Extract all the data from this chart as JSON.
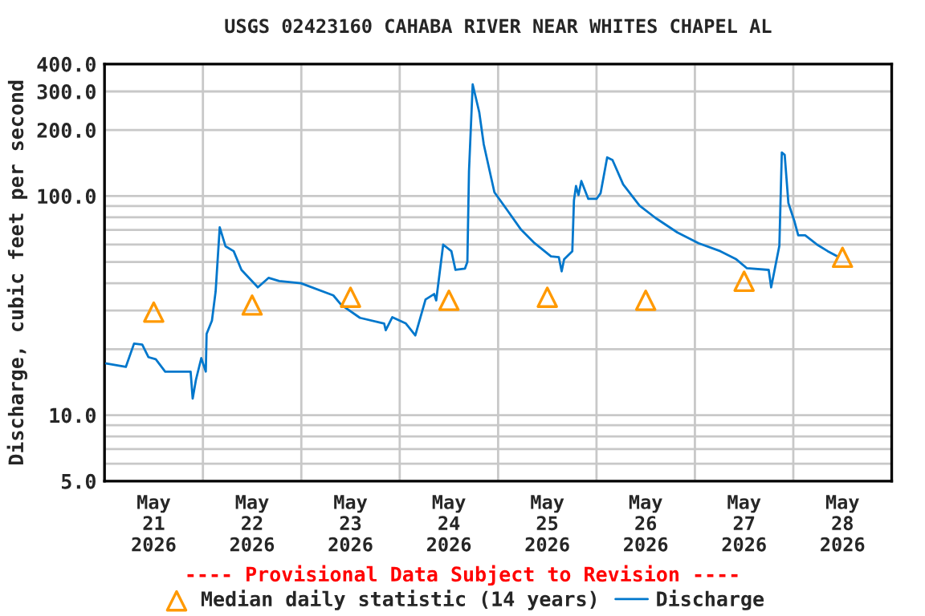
{
  "chart_data": {
    "type": "line",
    "title": "USGS 02423160 CAHABA RIVER NEAR WHITES CHAPEL AL",
    "ylabel": "Discharge, cubic feet per second",
    "annotations": [
      "---- Provisional Data Subject to Revision ----"
    ],
    "log": "y",
    "grid": true,
    "legend": "bottom",
    "xlim": [
      "2026-05-21T00:00",
      "2026-05-29T00:00"
    ],
    "xticks": [
      {
        "value": "2026-05-21T00:00",
        "label": null
      },
      {
        "value": "2026-05-21T12:00",
        "label": "May\n21\n2026"
      },
      {
        "value": "2026-05-22T00:00",
        "label": null
      },
      {
        "value": "2026-05-22T12:00",
        "label": "May\n22\n2026"
      },
      {
        "value": "2026-05-23T00:00",
        "label": null
      },
      {
        "value": "2026-05-23T12:00",
        "label": "May\n23\n2026"
      },
      {
        "value": "2026-05-24T00:00",
        "label": null
      },
      {
        "value": "2026-05-24T12:00",
        "label": "May\n24\n2026"
      },
      {
        "value": "2026-05-25T00:00",
        "label": null
      },
      {
        "value": "2026-05-25T12:00",
        "label": "May\n25\n2026"
      },
      {
        "value": "2026-05-26T00:00",
        "label": null
      },
      {
        "value": "2026-05-26T12:00",
        "label": "May\n26\n2026"
      },
      {
        "value": "2026-05-27T00:00",
        "label": null
      },
      {
        "value": "2026-05-27T12:00",
        "label": "May\n27\n2026"
      },
      {
        "value": "2026-05-28T00:00",
        "label": null
      },
      {
        "value": "2026-05-28T12:00",
        "label": "May\n28\n2026"
      },
      {
        "value": "2026-05-29T00:00",
        "label": null
      }
    ],
    "ylim": [
      5,
      400
    ],
    "yticks": [
      {
        "value": 5,
        "label": "5.0"
      },
      {
        "value": 6,
        "label": null
      },
      {
        "value": 7,
        "label": null
      },
      {
        "value": 8,
        "label": null
      },
      {
        "value": 9,
        "label": null
      },
      {
        "value": 10,
        "label": "10.0"
      },
      {
        "value": 20,
        "label": null
      },
      {
        "value": 30,
        "label": null
      },
      {
        "value": 40,
        "label": null
      },
      {
        "value": 50,
        "label": null
      },
      {
        "value": 60,
        "label": null
      },
      {
        "value": 70,
        "label": null
      },
      {
        "value": 80,
        "label": null
      },
      {
        "value": 90,
        "label": null
      },
      {
        "value": 100,
        "label": "100.0"
      },
      {
        "value": 200,
        "label": "200.0"
      },
      {
        "value": 300,
        "label": "300.0"
      },
      {
        "value": 400,
        "label": "400.0"
      }
    ],
    "series": [
      {
        "name": "Median daily statistic (14 years)",
        "type": "scatter",
        "marker": "triangle",
        "color": "#ff9900",
        "x": [
          "2026-05-21T12:00",
          "2026-05-22T12:00",
          "2026-05-23T12:00",
          "2026-05-24T12:00",
          "2026-05-25T12:00",
          "2026-05-26T12:00",
          "2026-05-27T12:00",
          "2026-05-28T12:00"
        ],
        "values": [
          29.5,
          31.8,
          34.5,
          33.4,
          34.5,
          33.4,
          40.8,
          52.5
        ]
      },
      {
        "name": "Discharge",
        "color": "#0077cc",
        "x": [
          "2026-05-21T00:24",
          "2026-05-21T05:12",
          "2026-05-21T07:12",
          "2026-05-21T09:12",
          "2026-05-21T10:42",
          "2026-05-21T12:30",
          "2026-05-21T14:48",
          "2026-05-21T21:00",
          "2026-05-21T21:30",
          "2026-05-21T22:18",
          "2026-05-21T23:36",
          "2026-05-22T00:42",
          "2026-05-22T00:54",
          "2026-05-22T02:12",
          "2026-05-22T03:06",
          "2026-05-22T04:06",
          "2026-05-22T05:30",
          "2026-05-22T07:30",
          "2026-05-22T09:24",
          "2026-05-22T13:24",
          "2026-05-22T16:00",
          "2026-05-22T18:36",
          "2026-05-22T23:54",
          "2026-05-23T07:48",
          "2026-05-23T09:42",
          "2026-05-23T14:18",
          "2026-05-23T20:12",
          "2026-05-23T20:36",
          "2026-05-23T22:12",
          "2026-05-24T01:30",
          "2026-05-24T03:48",
          "2026-05-24T06:18",
          "2026-05-24T08:24",
          "2026-05-24T08:54",
          "2026-05-24T10:36",
          "2026-05-24T12:36",
          "2026-05-24T13:36",
          "2026-05-24T15:54",
          "2026-05-24T16:30",
          "2026-05-24T16:54",
          "2026-05-24T17:48",
          "2026-05-24T19:24",
          "2026-05-24T20:30",
          "2026-05-24T22:24",
          "2026-05-24T23:06",
          "2026-05-25T02:24",
          "2026-05-25T05:36",
          "2026-05-25T08:54",
          "2026-05-25T12:54",
          "2026-05-25T14:48",
          "2026-05-25T15:30",
          "2026-05-25T16:06",
          "2026-05-25T18:06",
          "2026-05-25T18:30",
          "2026-05-25T19:00",
          "2026-05-25T19:36",
          "2026-05-25T20:18",
          "2026-05-25T22:00",
          "2026-05-26T00:00",
          "2026-05-26T01:00",
          "2026-05-26T02:36",
          "2026-05-26T03:54",
          "2026-05-26T06:30",
          "2026-05-26T10:30",
          "2026-05-26T14:24",
          "2026-05-26T19:42",
          "2026-05-27T00:54",
          "2026-05-27T06:12",
          "2026-05-27T10:06",
          "2026-05-27T12:42",
          "2026-05-27T18:00",
          "2026-05-27T18:36",
          "2026-05-27T19:42",
          "2026-05-27T20:36",
          "2026-05-27T21:12",
          "2026-05-27T21:54",
          "2026-05-27T22:48",
          "2026-05-28T00:18",
          "2026-05-28T01:12",
          "2026-05-28T02:54",
          "2026-05-28T05:48",
          "2026-05-28T08:24",
          "2026-05-28T10:48"
        ],
        "values": [
          17.2,
          16.6,
          21.2,
          21.0,
          18.4,
          18.0,
          15.8,
          15.8,
          11.9,
          14.5,
          18.2,
          15.8,
          23.5,
          27,
          36.7,
          72,
          59,
          56,
          46,
          38.3,
          42.3,
          40.9,
          40,
          35.2,
          31.9,
          27.8,
          26.2,
          24.4,
          28,
          26.2,
          23.1,
          33.7,
          35.7,
          33.4,
          60,
          56,
          46,
          46.6,
          50,
          130,
          323,
          241,
          172,
          119,
          104,
          85.3,
          70.2,
          60.9,
          53,
          52.6,
          45.3,
          51.4,
          56,
          95.5,
          111,
          101,
          117,
          97,
          97,
          103,
          150,
          146,
          113,
          90.3,
          79.4,
          68.2,
          60.9,
          56,
          51.4,
          46.8,
          46,
          38.3,
          48.7,
          59.3,
          158,
          154,
          92.9,
          76.4,
          66.2,
          66.2,
          60,
          56,
          53
        ]
      }
    ]
  }
}
